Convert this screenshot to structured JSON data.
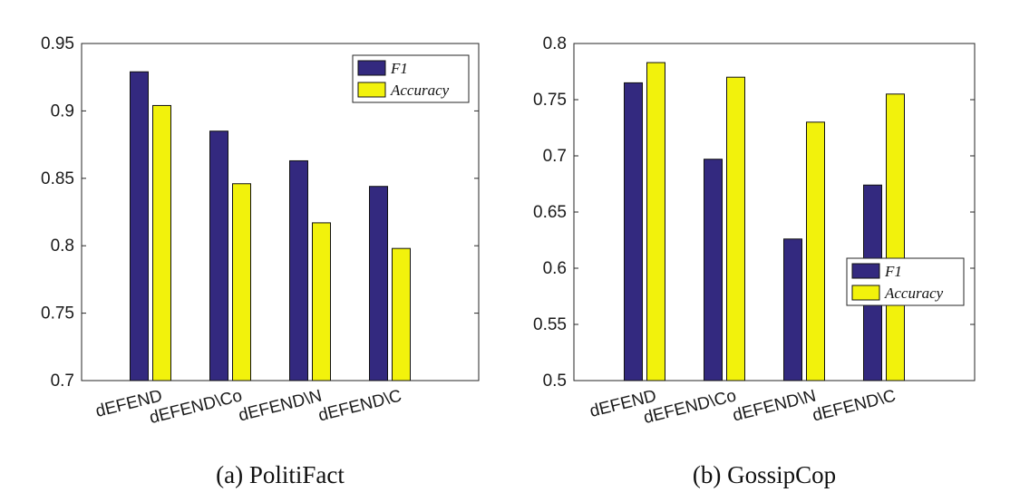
{
  "colors": {
    "f1": "#33297f",
    "accuracy": "#f2f20c"
  },
  "chart_data": [
    {
      "type": "bar",
      "caption": "(a)  PolitiFact",
      "categories": [
        "dEFEND",
        "dEFEND\\Co",
        "dEFEND\\N",
        "dEFEND\\C"
      ],
      "series": [
        {
          "name": "F1",
          "values": [
            0.929,
            0.885,
            0.863,
            0.844
          ]
        },
        {
          "name": "Accuracy",
          "values": [
            0.904,
            0.846,
            0.817,
            0.798
          ]
        }
      ],
      "ylim": [
        0.7,
        0.95
      ],
      "yticks": [
        "0.7",
        "0.75",
        "0.8",
        "0.85",
        "0.9",
        "0.95"
      ],
      "legend_position": "top-right"
    },
    {
      "type": "bar",
      "caption": "(b)  GossipCop",
      "categories": [
        "dEFEND",
        "dEFEND\\Co",
        "dEFEND\\N",
        "dEFEND\\C"
      ],
      "series": [
        {
          "name": "F1",
          "values": [
            0.765,
            0.697,
            0.626,
            0.674
          ]
        },
        {
          "name": "Accuracy",
          "values": [
            0.783,
            0.77,
            0.73,
            0.755
          ]
        }
      ],
      "ylim": [
        0.5,
        0.8
      ],
      "yticks": [
        "0.5",
        "0.55",
        "0.6",
        "0.65",
        "0.7",
        "0.75",
        "0.8"
      ],
      "legend_position": "right"
    }
  ]
}
